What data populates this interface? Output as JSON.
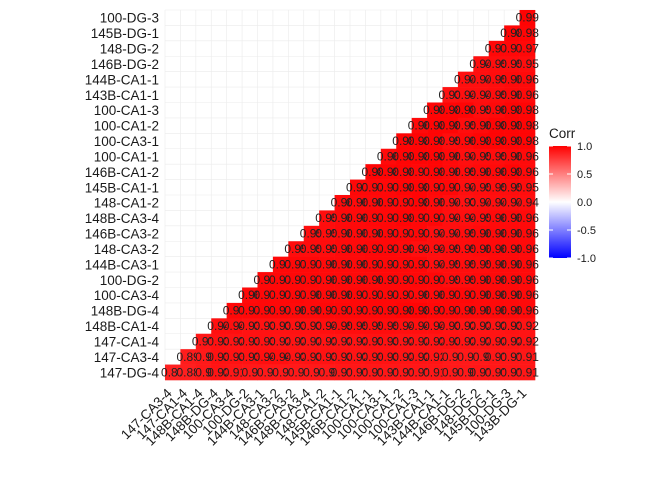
{
  "chart_data": {
    "type": "heatmap",
    "subtype": "lower-triangle correlation matrix",
    "labels": [
      "100-DG-3",
      "145B-DG-1",
      "148-DG-2",
      "146B-DG-2",
      "144B-CA1-1",
      "143B-CA1-1",
      "100-CA1-3",
      "100-CA1-2",
      "100-CA3-1",
      "100-CA1-1",
      "146B-CA1-2",
      "145B-CA1-1",
      "148-CA1-2",
      "148B-CA3-4",
      "146B-CA3-2",
      "148-CA3-2",
      "144B-CA3-1",
      "100-DG-2",
      "100-CA3-4",
      "148B-DG-4",
      "148B-CA1-4",
      "147-CA1-4",
      "147-CA3-4",
      "147-DG-4"
    ],
    "x_labels": [
      "147-CA3-4",
      "147-CA1-4",
      "148B-CA1-4",
      "148B-DG-4",
      "100-CA3-4",
      "100-DG-2",
      "144B-CA3-1",
      "148-CA3-2",
      "146B-CA3-2",
      "148B-CA3-4",
      "148-CA1-2",
      "145B-CA1-1",
      "146B-CA1-2",
      "100-CA1-1",
      "100-CA3-1",
      "100-CA1-2",
      "100-CA1-3",
      "143B-CA1-1",
      "144B-CA1-1",
      "146B-DG-2",
      "148-DG-2",
      "145B-DG-1",
      "100-DG-3",
      "143B-DG-1"
    ],
    "visible_cell_text": [
      [
        "0.99"
      ],
      [
        "0.98",
        "0.98"
      ],
      [
        "0.97",
        "0.97",
        "0.97"
      ],
      [
        "0.94",
        "0.95",
        "0.95",
        "0.95"
      ],
      [
        "0.94",
        "0.94",
        "0.95",
        "0.96",
        "0.96"
      ],
      [
        "0.93",
        "0.94",
        "0.94",
        "0.95",
        "0.96",
        "0.96"
      ],
      [
        "0.98",
        "0.98",
        "0.98",
        "0.95",
        "0.96",
        "0.98",
        "0.98"
      ],
      [
        "0.96",
        "0.98",
        "0.98",
        "0.95",
        "0.96",
        "0.98",
        "0.98",
        "0.98"
      ],
      [
        "0.98",
        "0.98",
        "0.98",
        "0.95",
        "0.96",
        "0.98",
        "0.98",
        "0.98",
        "0.98"
      ],
      [
        "0.96",
        "0.98",
        "0.98",
        "0.98",
        "0.96",
        "0.94",
        "0.95",
        "0.95",
        "0.96",
        "0.96"
      ],
      [
        "0.98",
        "0.98",
        "0.98",
        "0.97",
        "0.98",
        "0.96",
        "0.95",
        "0.96",
        "0.96",
        "0.98",
        "0.96"
      ],
      [
        "0.97",
        "0.97",
        "0.97",
        "0.98",
        "0.98",
        "0.97",
        "0.97",
        "0.94",
        "0.95",
        "0.95",
        "0.95",
        "0.95"
      ],
      [
        "0.96",
        "0.96",
        "0.96",
        "0.97",
        "0.97",
        "0.98",
        "0.96",
        "0.94",
        "0.93",
        "0.94",
        "0.94",
        "0.94",
        "0.94"
      ],
      [
        "0.95",
        "0.96",
        "0.96",
        "0.97",
        "0.97",
        "0.98",
        "0.97",
        "0.97",
        "0.94",
        "0.94",
        "0.95",
        "0.96",
        "0.96",
        "0.96"
      ],
      [
        "0.95",
        "0.95",
        "0.96",
        "0.96",
        "0.96",
        "0.97",
        "0.97",
        "0.97",
        "0.94",
        "0.94",
        "0.95",
        "0.96",
        "0.96",
        "0.96",
        "0.96"
      ],
      [
        "0.95",
        "0.95",
        "0.95",
        "0.96",
        "0.96",
        "0.97",
        "0.97",
        "0.96",
        "0.94",
        "0.94",
        "0.95",
        "0.95",
        "0.96",
        "0.96",
        "0.96",
        "0.96"
      ],
      [
        "0.97",
        "0.97",
        "0.97",
        "0.96",
        "0.96",
        "0.96",
        "0.97",
        "0.97",
        "0.97",
        "0.97",
        "0.94",
        "0.95",
        "0.95",
        "0.95",
        "0.96",
        "0.96",
        "0.96"
      ],
      [
        "0.97",
        "0.97",
        "0.97",
        "0.97",
        "0.96",
        "0.96",
        "0.96",
        "0.96",
        "0.97",
        "0.97",
        "0.97",
        "0.97",
        "0.95",
        "0.95",
        "0.96",
        "0.96",
        "0.96",
        "0.96"
      ],
      [
        "0.96",
        "0.97",
        "0.97",
        "0.97",
        "0.96",
        "0.96",
        "0.96",
        "0.97",
        "0.97",
        "0.97",
        "0.97",
        "0.96",
        "0.96",
        "0.97",
        "0.97",
        "0.96",
        "0.96",
        "0.96",
        "0.96"
      ],
      [
        "0.97",
        "0.97",
        "0.97",
        "0.97",
        "0.96",
        "0.96",
        "0.97",
        "0.97",
        "0.97",
        "0.97",
        "0.97",
        "0.98",
        "0.98",
        "0.97",
        "0.97",
        "0.96",
        "0.96",
        "0.96",
        "0.96",
        "0.96"
      ],
      [
        "0.94",
        "0.94",
        "0.93",
        "0.93",
        "0.93",
        "0.93",
        "0.93",
        "0.94",
        "0.95",
        "0.95",
        "0.95",
        "0.95",
        "0.94",
        "0.94",
        "0.94",
        "0.93",
        "0.92",
        "0.92",
        "0.92",
        "0.93",
        "0.92"
      ],
      [
        "0.91",
        "0.93",
        "0.92",
        "0.93",
        "0.93",
        "0.92",
        "0.92",
        "0.92",
        "0.92",
        "0.92",
        "0.92",
        "0.93",
        "0.93",
        "0.92",
        "0.92",
        "0.92",
        "0.93",
        "0.92",
        "0.92",
        "0.92",
        "0.92",
        "0.92"
      ],
      [
        "0.89",
        "0.9",
        "0.93",
        "0.93",
        "0.93",
        "0.94",
        "0.94",
        "0.92",
        "0.93",
        "0.93",
        "0.93",
        "0.92",
        "0.93",
        "0.93",
        "0.92",
        "0.92",
        "0.92",
        "0.9",
        "0.9",
        "0.9",
        "0.91",
        "0.91",
        "0.91"
      ],
      [
        "0.87",
        "0.88",
        "0.9",
        "0.92",
        "0.91",
        "0.9",
        "0.9",
        "0.9",
        "0.9",
        "0.9",
        "0.9",
        "0.91",
        "0.91",
        "0.91",
        "0.91",
        "0.91",
        "0.91",
        "0.91",
        "0.9",
        "0.9",
        "0.91",
        "0.91",
        "0.91",
        "0.91"
      ]
    ],
    "legend": {
      "title": "Corr",
      "ticks": [
        "1.0",
        "0.5",
        "0.0",
        "-0.5",
        "-1.0"
      ],
      "tick_values": [
        1.0,
        0.5,
        0.0,
        -0.5,
        -1.0
      ],
      "placement": "right",
      "colors": {
        "high": "#ff0000",
        "mid": "#ffffff",
        "low": "#0000ff"
      }
    },
    "grid": true,
    "ylim": [
      -1,
      1
    ]
  }
}
